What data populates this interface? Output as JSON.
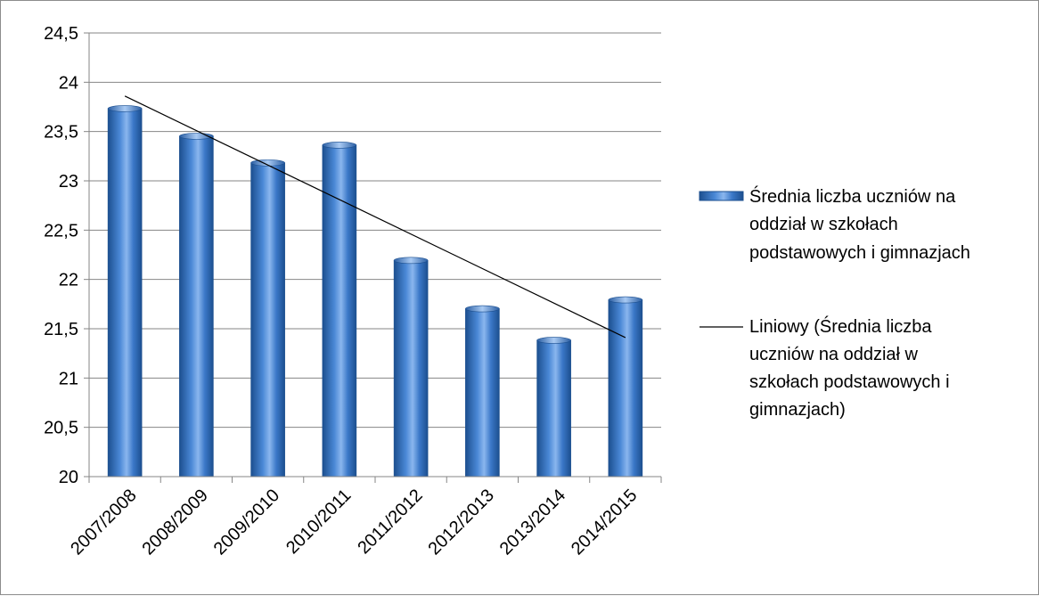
{
  "chart_data": {
    "type": "bar",
    "categories": [
      "2007/2008",
      "2008/2009",
      "2009/2010",
      "2010/2011",
      "2011/2012",
      "2012/2013",
      "2013/2014",
      "2014/2015"
    ],
    "series": [
      {
        "name": "Średnia liczba uczniów na oddział w szkołach podstawowych i gimnazjach",
        "values": [
          23.76,
          23.48,
          23.21,
          23.39,
          22.22,
          21.73,
          21.41,
          21.82
        ]
      }
    ],
    "trendline": {
      "type": "linear",
      "name": "Liniowy (Średnia liczba uczniów na oddział w szkołach podstawowych i gimnazjach)",
      "start": 23.86,
      "end": 21.41
    },
    "ylim": [
      20,
      24.5
    ],
    "yticks": [
      "20",
      "20,5",
      "21",
      "21,5",
      "22",
      "22,5",
      "23",
      "23,5",
      "24",
      "24,5"
    ],
    "grid": true,
    "legend_position": "right",
    "legend": {
      "series_lines": [
        "Średnia liczba uczniów na",
        "oddział w szkołach",
        "podstawowych i gimnazjach"
      ],
      "trend_lines": [
        "Liniowy (Średnia liczba",
        "uczniów na oddział w",
        "szkołach podstawowych i",
        "gimnazjach)"
      ]
    },
    "colors": {
      "bar_dark": "#1c4f8f",
      "bar_mid": "#3b78c8",
      "bar_light": "#8ab6ee",
      "gridline": "#868686",
      "axis": "#868686",
      "trend": "#000000"
    }
  }
}
